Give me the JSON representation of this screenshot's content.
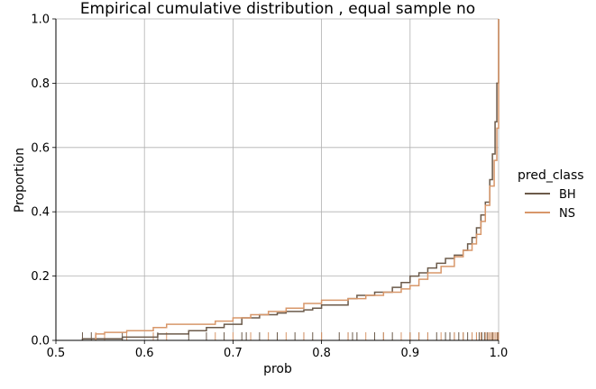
{
  "chart_data": {
    "type": "line",
    "title": "Empirical cumulative distribution , equal sample no",
    "xlabel": "prob",
    "ylabel": "Proportion",
    "xlim": [
      0.5,
      1.0
    ],
    "ylim": [
      0.0,
      1.0
    ],
    "xticks": [
      "0.5",
      "0.6",
      "0.7",
      "0.8",
      "0.9",
      "1.0"
    ],
    "yticks": [
      "0.0",
      "0.2",
      "0.4",
      "0.6",
      "0.8",
      "1.0"
    ],
    "grid": true,
    "legend": {
      "title": "pred_class",
      "position": "right"
    },
    "series": [
      {
        "name": "BH",
        "color": "#6b5a4a",
        "x": [
          0.53,
          0.575,
          0.615,
          0.65,
          0.67,
          0.69,
          0.71,
          0.73,
          0.75,
          0.76,
          0.78,
          0.79,
          0.8,
          0.83,
          0.84,
          0.86,
          0.88,
          0.89,
          0.9,
          0.91,
          0.92,
          0.93,
          0.94,
          0.95,
          0.96,
          0.965,
          0.97,
          0.975,
          0.98,
          0.985,
          0.99,
          0.993,
          0.996,
          0.998,
          1.0
        ],
        "y": [
          0.005,
          0.01,
          0.02,
          0.03,
          0.04,
          0.05,
          0.07,
          0.08,
          0.085,
          0.09,
          0.095,
          0.1,
          0.11,
          0.13,
          0.14,
          0.15,
          0.165,
          0.18,
          0.2,
          0.21,
          0.225,
          0.24,
          0.255,
          0.265,
          0.28,
          0.3,
          0.32,
          0.35,
          0.39,
          0.43,
          0.5,
          0.58,
          0.68,
          0.8,
          1.0
        ]
      },
      {
        "name": "NS",
        "color": "#d8976a",
        "x": [
          0.545,
          0.555,
          0.58,
          0.61,
          0.625,
          0.68,
          0.7,
          0.72,
          0.74,
          0.76,
          0.78,
          0.8,
          0.83,
          0.85,
          0.87,
          0.89,
          0.9,
          0.91,
          0.92,
          0.935,
          0.95,
          0.96,
          0.97,
          0.975,
          0.98,
          0.985,
          0.99,
          0.995,
          0.998,
          1.0
        ],
        "y": [
          0.02,
          0.025,
          0.03,
          0.04,
          0.05,
          0.06,
          0.07,
          0.08,
          0.09,
          0.1,
          0.115,
          0.125,
          0.13,
          0.14,
          0.15,
          0.16,
          0.17,
          0.19,
          0.21,
          0.23,
          0.26,
          0.28,
          0.3,
          0.33,
          0.37,
          0.42,
          0.48,
          0.56,
          0.66,
          1.0
        ]
      }
    ],
    "rug": {
      "BH": [
        0.53,
        0.54,
        0.575,
        0.615,
        0.65,
        0.67,
        0.69,
        0.71,
        0.715,
        0.73,
        0.75,
        0.77,
        0.78,
        0.79,
        0.8,
        0.82,
        0.83,
        0.835,
        0.84,
        0.86,
        0.87,
        0.88,
        0.9,
        0.91,
        0.92,
        0.93,
        0.94,
        0.945,
        0.95,
        0.955,
        0.96,
        0.965,
        0.97,
        0.975,
        0.978,
        0.981,
        0.984,
        0.987,
        0.99,
        0.993,
        0.996,
        0.999
      ],
      "NS": [
        0.545,
        0.555,
        0.58,
        0.61,
        0.625,
        0.68,
        0.7,
        0.72,
        0.74,
        0.76,
        0.78,
        0.8,
        0.83,
        0.85,
        0.87,
        0.89,
        0.9,
        0.91,
        0.92,
        0.935,
        0.95,
        0.96,
        0.97,
        0.975,
        0.98,
        0.985,
        0.988,
        0.99,
        0.992,
        0.994,
        0.996,
        0.998,
        1.0
      ]
    }
  }
}
